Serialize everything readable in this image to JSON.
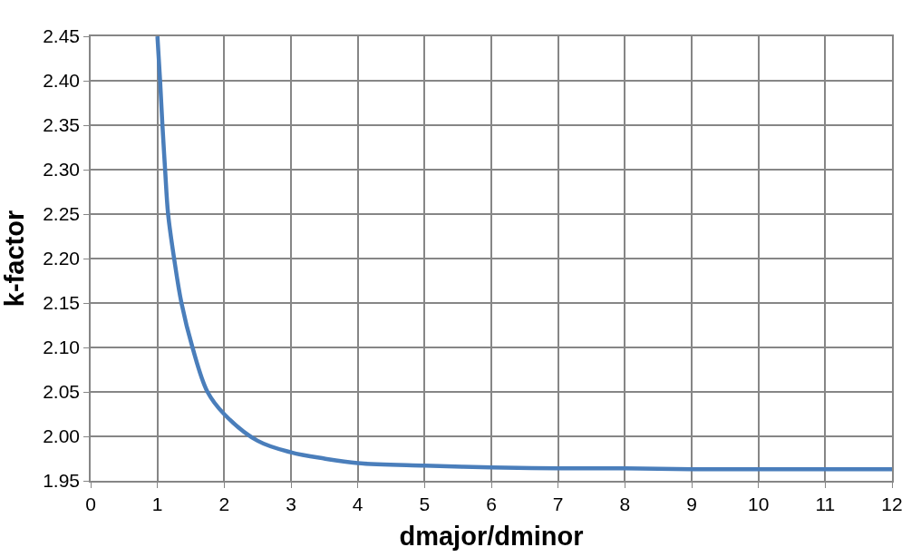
{
  "chart_data": {
    "type": "line",
    "xlabel": "dmajor/dminor",
    "ylabel": "k-factor",
    "series": [
      {
        "color": "#4a7ebb",
        "x": [
          1.0,
          1.04,
          1.075,
          1.115,
          1.16,
          1.25,
          1.36,
          1.525,
          1.75,
          2.0,
          2.5,
          3.0,
          3.5,
          4.0,
          5.0,
          6.0,
          7.0,
          8.0,
          9.0,
          10.0,
          11.0,
          12.0
        ],
        "values": [
          2.45,
          2.4,
          2.35,
          2.3,
          2.25,
          2.2,
          2.15,
          2.1,
          2.05,
          2.025,
          1.995,
          1.982,
          1.975,
          1.97,
          1.967,
          1.965,
          1.964,
          1.964,
          1.963,
          1.963,
          1.963,
          1.963
        ]
      }
    ],
    "xlim": [
      0,
      12
    ],
    "xticks": [
      0,
      1,
      2,
      3,
      4,
      5,
      6,
      7,
      8,
      9,
      10,
      11,
      12
    ],
    "ylim": [
      1.95,
      2.45
    ],
    "yticks": [
      {
        "value": 1.95,
        "label": "1.95"
      },
      {
        "value": 2.0,
        "label": "2.00"
      },
      {
        "value": 2.05,
        "label": "2.05"
      },
      {
        "value": 2.1,
        "label": "2.10"
      },
      {
        "value": 2.15,
        "label": "2.15"
      },
      {
        "value": 2.2,
        "label": "2.20"
      },
      {
        "value": 2.25,
        "label": "2.25"
      },
      {
        "value": 2.3,
        "label": "2.30"
      },
      {
        "value": 2.35,
        "label": "2.35"
      },
      {
        "value": 2.4,
        "label": "2.40"
      },
      {
        "value": 2.45,
        "label": "2.45"
      }
    ],
    "grid": true,
    "marker": "none",
    "line_style": "solid"
  }
}
